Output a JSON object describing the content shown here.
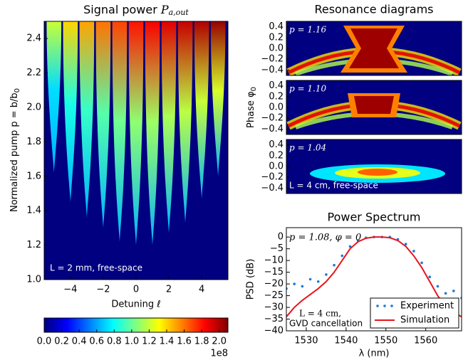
{
  "chart_data": [
    {
      "type": "tongues",
      "title": "Signal power",
      "title_symbol": "P",
      "title_sub": "a,out",
      "xlabel": "Detuning ℓ",
      "ylabel": "Normalized pump p = b/b",
      "ylabel_sub": "0",
      "xlim": [
        -5.6,
        5.6
      ],
      "ylim": [
        1.0,
        2.5
      ],
      "xticks": [
        {
          "value": -4,
          "label": "−4"
        },
        {
          "value": -2,
          "label": "−2"
        },
        0,
        2,
        4
      ],
      "yticks": [
        {
          "value": 1.0,
          "label": "1.0"
        },
        1.2,
        1.4,
        1.6,
        1.8,
        {
          "value": 2.0,
          "label": "2.0"
        },
        2.2,
        2.4
      ],
      "annotation": "L = 2 mm, free-space",
      "tongues": {
        "centers": [
          -5,
          -4,
          -3,
          -2,
          -1,
          0,
          1,
          2,
          3,
          4,
          5
        ],
        "thresholds": [
          1.62,
          1.45,
          1.36,
          1.3,
          1.22,
          1.2,
          1.2,
          1.27,
          1.33,
          1.47,
          1.6
        ],
        "peaks": [
          1.2,
          1.4,
          1.5,
          1.6,
          1.7,
          1.8,
          1.85,
          1.9,
          1.95,
          2.0,
          2.05
        ]
      },
      "clim": [
        0,
        2.1
      ],
      "cticks": [
        {
          "value": 0,
          "label": "0.0"
        },
        {
          "value": 0.2,
          "label": "0.2"
        },
        {
          "value": 0.4,
          "label": "0.4"
        },
        {
          "value": 0.6,
          "label": "0.6"
        },
        {
          "value": 0.8,
          "label": "0.8"
        },
        {
          "value": 1.0,
          "label": "1.0"
        },
        {
          "value": 1.2,
          "label": "1.2"
        },
        {
          "value": 1.4,
          "label": "1.4"
        },
        {
          "value": 1.6,
          "label": "1.6"
        },
        {
          "value": 1.8,
          "label": "1.8"
        },
        {
          "value": 2.0,
          "label": "2.0"
        }
      ],
      "colorbar_multiplier": "1e8"
    },
    {
      "type": "image",
      "title": "Resonance diagrams",
      "ylabel": "Phase φ",
      "ylabel_sub": "0",
      "ylim": [
        -0.5,
        0.5
      ],
      "yticks": [
        {
          "value": 0.4,
          "label": "0.4"
        },
        {
          "value": 0.2,
          "label": "0.2"
        },
        {
          "value": 0,
          "label": "0.0"
        },
        {
          "value": -0.2,
          "label": "−0.2"
        },
        {
          "value": -0.4,
          "label": "−0.4"
        }
      ],
      "panels": [
        "p = 1.16",
        "p = 1.10",
        "p = 1.04"
      ],
      "annotation": "L = 4 cm, free-space"
    },
    {
      "type": "line",
      "title": "Power Spectrum",
      "xlabel": "λ (nm)",
      "ylabel": "PSD (dB)",
      "xlim": [
        1525,
        1569
      ],
      "ylim": [
        -40,
        4
      ],
      "xticks": [
        1530,
        1540,
        1550,
        1560
      ],
      "yticks": [
        0,
        {
          "value": -5,
          "label": "−5"
        },
        {
          "value": -10,
          "label": "−10"
        },
        {
          "value": -15,
          "label": "−15"
        },
        {
          "value": -20,
          "label": "−20"
        },
        {
          "value": -25,
          "label": "−25"
        },
        {
          "value": -30,
          "label": "−30"
        },
        {
          "value": -35,
          "label": "−35"
        },
        {
          "value": -40,
          "label": "−40"
        }
      ],
      "x": [
        1525,
        1527,
        1529,
        1531,
        1533,
        1535,
        1537,
        1539,
        1541,
        1543,
        1545,
        1547,
        1549,
        1551,
        1553,
        1555,
        1557,
        1559,
        1561,
        1563,
        1565,
        1567,
        1569
      ],
      "series": [
        {
          "name": "Experiment",
          "color": "#1f77d4",
          "style": "dots",
          "values": [
            -22,
            -20,
            -21,
            -18,
            -19,
            -16,
            -12,
            -8,
            -4,
            -1.5,
            -0.3,
            0,
            0,
            0,
            -1,
            -3,
            -6,
            -11,
            -17,
            -21,
            -24,
            -23,
            -26
          ]
        },
        {
          "name": "Simulation",
          "color": "#e8141c",
          "style": "line",
          "values": [
            -34,
            -30,
            -27,
            -24.5,
            -22,
            -19,
            -15,
            -10,
            -5,
            -2,
            -0.5,
            0,
            0,
            -0.3,
            -1.5,
            -4,
            -8,
            -13,
            -19,
            -25,
            -30,
            -32,
            -34
          ]
        }
      ],
      "annotation": "p = 1.08, φ = 0",
      "annotation2": "L = 4 cm,",
      "annotation3": "GVD cancellation",
      "legend": "lower right"
    }
  ]
}
